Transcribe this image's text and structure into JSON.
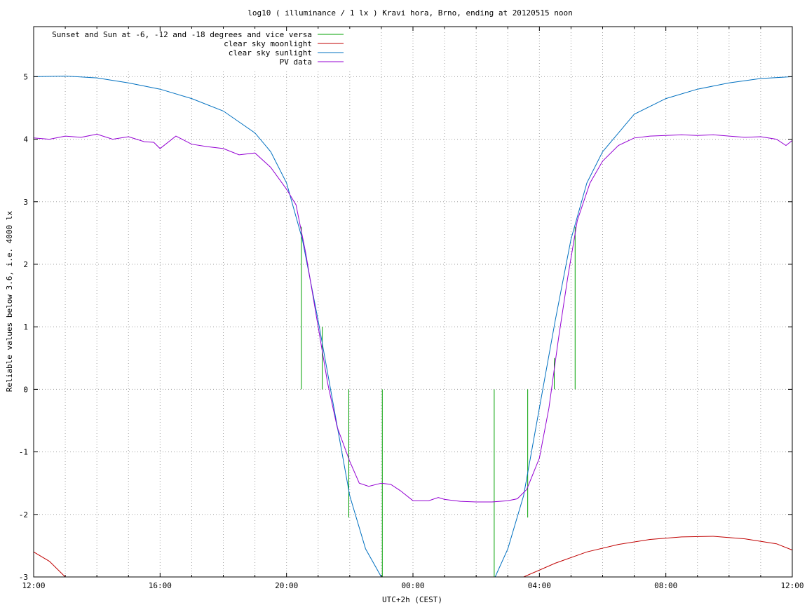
{
  "chart_data": {
    "type": "line",
    "title": "log10 ( illuminance / 1 lx ) Kravi hora, Brno, ending at 20120515 noon",
    "xlabel": "UTC+2h (CEST)",
    "ylabel": "Reliable values below 3.6, i.e. 4000 lx",
    "xlim": [
      12,
      36
    ],
    "ylim": [
      -3,
      5.8
    ],
    "x_ticks": [
      {
        "value": 12,
        "label": "12:00"
      },
      {
        "value": 16,
        "label": "16:00"
      },
      {
        "value": 20,
        "label": "20:00"
      },
      {
        "value": 24,
        "label": "00:00"
      },
      {
        "value": 28,
        "label": "04:00"
      },
      {
        "value": 32,
        "label": "08:00"
      },
      {
        "value": 36,
        "label": "12:00"
      }
    ],
    "y_ticks": [
      {
        "value": 5,
        "label": "5"
      },
      {
        "value": 4,
        "label": "4"
      },
      {
        "value": 3,
        "label": "3"
      },
      {
        "value": 2,
        "label": "2"
      },
      {
        "value": 1,
        "label": "1"
      },
      {
        "value": 0,
        "label": "0"
      },
      {
        "value": -1,
        "label": "-1"
      },
      {
        "value": -2,
        "label": "-2"
      },
      {
        "value": -3,
        "label": "-3"
      }
    ],
    "grid": true,
    "legend_position": "top-left",
    "colors": {
      "sun_markers": "#00a000",
      "moonlight": "#c00000",
      "sunlight": "#0070c0",
      "pv": "#9400d3"
    },
    "series": [
      {
        "name": "Sunset and Sun at -6, -12 and -18 degrees and vice versa",
        "kind": "markers",
        "markers": [
          {
            "x": 20.47,
            "y_from": 0,
            "y_to": 2.6
          },
          {
            "x": 21.13,
            "y_from": 0,
            "y_to": 1.0
          },
          {
            "x": 21.97,
            "y_from": -2.05,
            "y_to": 0
          },
          {
            "x": 23.03,
            "y_from": -3,
            "y_to": 0
          },
          {
            "x": 26.57,
            "y_from": -3,
            "y_to": 0
          },
          {
            "x": 27.63,
            "y_from": -2.05,
            "y_to": 0
          },
          {
            "x": 28.47,
            "y_from": 0,
            "y_to": 0.5
          },
          {
            "x": 29.13,
            "y_from": 0,
            "y_to": 2.6
          }
        ]
      },
      {
        "name": "clear sky moonlight",
        "x": [
          12.0,
          12.5,
          13.0,
          27.5,
          28.5,
          29.5,
          30.5,
          31.5,
          32.5,
          33.5,
          34.5,
          35.5,
          36.0
        ],
        "y": [
          -2.6,
          -2.75,
          -3.0,
          -3.0,
          -2.78,
          -2.6,
          -2.48,
          -2.4,
          -2.36,
          -2.35,
          -2.39,
          -2.47,
          -2.57
        ]
      },
      {
        "name": "clear sky sunlight",
        "x": [
          12.0,
          13.0,
          14.0,
          15.0,
          16.0,
          17.0,
          18.0,
          19.0,
          19.5,
          20.0,
          20.5,
          21.0,
          21.5,
          22.0,
          22.5,
          23.0,
          26.6,
          27.0,
          27.5,
          28.0,
          28.5,
          29.0,
          29.5,
          30.0,
          31.0,
          32.0,
          33.0,
          34.0,
          35.0,
          36.0
        ],
        "y": [
          5.0,
          5.01,
          4.98,
          4.9,
          4.8,
          4.65,
          4.45,
          4.1,
          3.8,
          3.3,
          2.4,
          1.1,
          -0.3,
          -1.7,
          -2.55,
          -3.0,
          -3.0,
          -2.55,
          -1.7,
          -0.3,
          1.1,
          2.4,
          3.3,
          3.8,
          4.4,
          4.65,
          4.8,
          4.9,
          4.97,
          5.0
        ]
      },
      {
        "name": "PV data",
        "x": [
          12.0,
          12.5,
          13.0,
          13.5,
          14.0,
          14.5,
          15.0,
          15.5,
          15.8,
          16.0,
          16.5,
          17.0,
          17.5,
          18.0,
          18.5,
          19.0,
          19.5,
          20.0,
          20.3,
          20.6,
          21.0,
          21.3,
          21.6,
          22.0,
          22.3,
          22.6,
          23.0,
          23.3,
          23.6,
          24.0,
          24.5,
          24.8,
          25.0,
          25.5,
          26.0,
          26.5,
          27.0,
          27.3,
          27.6,
          28.0,
          28.3,
          28.6,
          28.9,
          29.2,
          29.6,
          30.0,
          30.5,
          31.0,
          31.5,
          32.0,
          32.5,
          33.0,
          33.5,
          34.0,
          34.5,
          35.0,
          35.5,
          35.8,
          36.0
        ],
        "y": [
          4.02,
          4.0,
          4.05,
          4.03,
          4.08,
          4.0,
          4.04,
          3.96,
          3.95,
          3.85,
          4.05,
          3.92,
          3.88,
          3.85,
          3.75,
          3.78,
          3.55,
          3.2,
          2.95,
          2.2,
          1.0,
          0.1,
          -0.6,
          -1.15,
          -1.5,
          -1.55,
          -1.5,
          -1.52,
          -1.62,
          -1.78,
          -1.78,
          -1.73,
          -1.76,
          -1.79,
          -1.8,
          -1.8,
          -1.78,
          -1.75,
          -1.6,
          -1.1,
          -0.3,
          0.8,
          1.8,
          2.7,
          3.3,
          3.65,
          3.9,
          4.02,
          4.05,
          4.06,
          4.07,
          4.06,
          4.07,
          4.05,
          4.03,
          4.04,
          4.0,
          3.9,
          3.98
        ]
      }
    ]
  }
}
